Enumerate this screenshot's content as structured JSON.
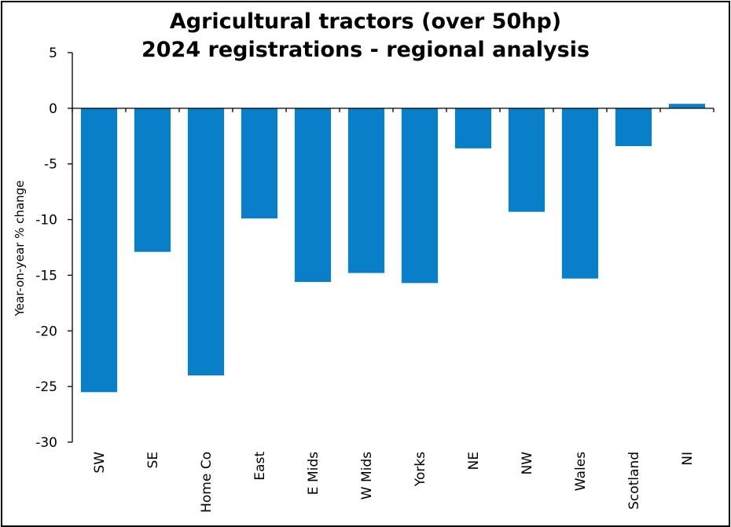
{
  "chart_data": {
    "type": "bar",
    "title": [
      "Agricultural tractors (over 50hp)",
      "2024 registrations  - regional analysis"
    ],
    "xlabel": "",
    "ylabel": "Year-on-year  % change",
    "ylim": [
      -30,
      5
    ],
    "yticks": [
      5,
      0,
      -5,
      -10,
      -15,
      -20,
      -25,
      -30
    ],
    "categories": [
      "SW",
      "SE",
      "Home Co",
      "East",
      "E Mids",
      "W Mids",
      "Yorks",
      "NE",
      "NW",
      "Wales",
      "Scotland",
      "NI"
    ],
    "values": [
      -25.5,
      -12.9,
      -24.0,
      -9.9,
      -15.6,
      -14.8,
      -15.7,
      -3.6,
      -9.3,
      -15.3,
      -3.4,
      0.4
    ],
    "bar_color": "#0a7fc9",
    "grid": false,
    "legend": "none"
  }
}
